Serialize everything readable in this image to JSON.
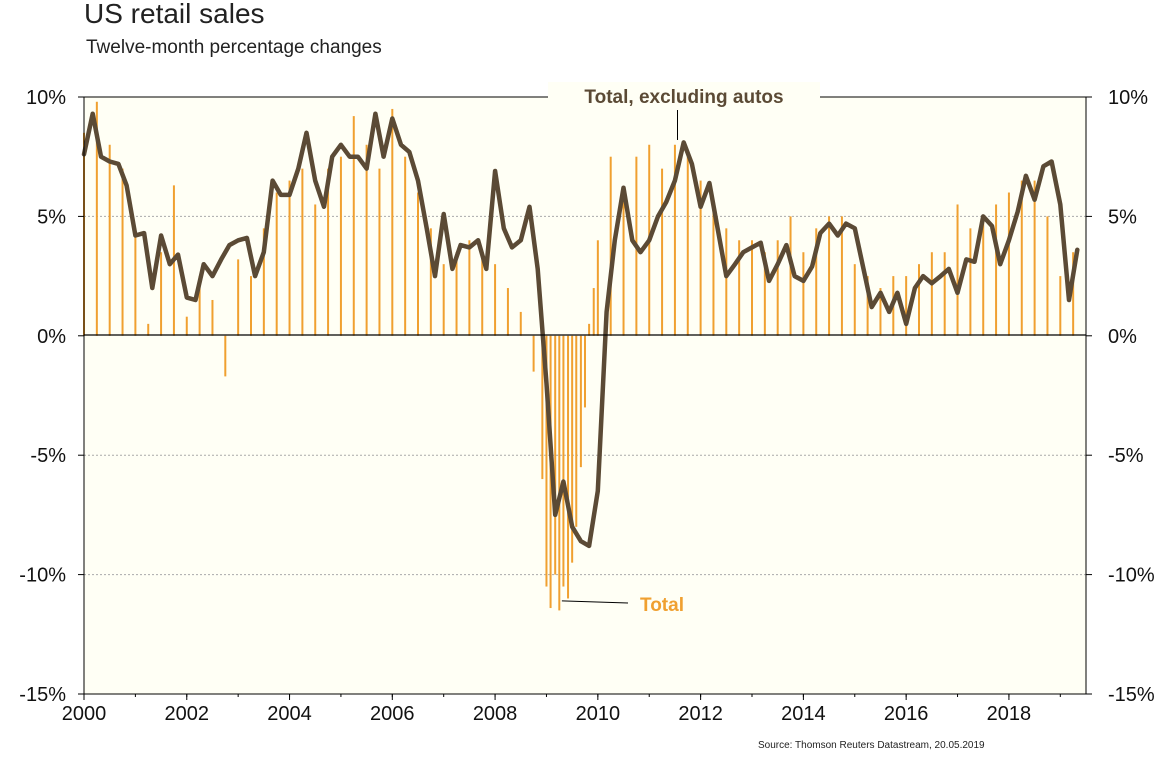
{
  "title": "US retail sales",
  "subtitle": "Twelve-month percentage changes",
  "source": "Source: Thomson Reuters Datastream, 20.05.2019",
  "colors": {
    "total": "#f0a030",
    "ex_autos": "#5b4a35",
    "background": "#fffff5",
    "grid": "#aaaaaa"
  },
  "chart_data": {
    "type": "bar",
    "ylim": [
      -15,
      10
    ],
    "xlim": [
      2000,
      2019.5
    ],
    "y_ticks": [
      {
        "value": 10,
        "label": "10%"
      },
      {
        "value": 5,
        "label": "5%"
      },
      {
        "value": 0,
        "label": "0%"
      },
      {
        "value": -5,
        "label": "-5%"
      },
      {
        "value": -10,
        "label": "-10%"
      },
      {
        "value": -15,
        "label": "-15%"
      }
    ],
    "x_ticks": [
      {
        "value": 2000,
        "label": "2000"
      },
      {
        "value": 2002,
        "label": "2002"
      },
      {
        "value": 2004,
        "label": "2004"
      },
      {
        "value": 2006,
        "label": "2006"
      },
      {
        "value": 2008,
        "label": "2008"
      },
      {
        "value": 2010,
        "label": "2010"
      },
      {
        "value": 2012,
        "label": "2012"
      },
      {
        "value": 2014,
        "label": "2014"
      },
      {
        "value": 2016,
        "label": "2016"
      },
      {
        "value": 2018,
        "label": "2018"
      }
    ],
    "grid": true,
    "annotations": [
      {
        "label": "Total, excluding autos",
        "series": "ex_autos",
        "x": 2011.55,
        "y": 8.2
      },
      {
        "label": "Total",
        "series": "total",
        "x": 2009.3,
        "y": -11.1
      }
    ],
    "series": [
      {
        "key": "total",
        "style": "bar",
        "x": [
          2000.0,
          2000.25,
          2000.5,
          2000.75,
          2001.0,
          2001.25,
          2001.5,
          2001.75,
          2002.0,
          2002.25,
          2002.5,
          2002.75,
          2003.0,
          2003.25,
          2003.5,
          2003.75,
          2004.0,
          2004.25,
          2004.5,
          2004.75,
          2005.0,
          2005.25,
          2005.5,
          2005.75,
          2006.0,
          2006.25,
          2006.5,
          2006.75,
          2007.0,
          2007.25,
          2007.5,
          2007.75,
          2008.0,
          2008.25,
          2008.5,
          2008.75,
          2008.92,
          2009.0,
          2009.08,
          2009.17,
          2009.25,
          2009.33,
          2009.42,
          2009.5,
          2009.58,
          2009.67,
          2009.75,
          2009.83,
          2009.92,
          2010.0,
          2010.25,
          2010.5,
          2010.75,
          2011.0,
          2011.25,
          2011.5,
          2011.75,
          2012.0,
          2012.25,
          2012.5,
          2012.75,
          2013.0,
          2013.25,
          2013.5,
          2013.75,
          2014.0,
          2014.25,
          2014.5,
          2014.75,
          2015.0,
          2015.25,
          2015.5,
          2015.75,
          2016.0,
          2016.25,
          2016.5,
          2016.75,
          2017.0,
          2017.25,
          2017.5,
          2017.75,
          2018.0,
          2018.25,
          2018.5,
          2018.75,
          2019.0,
          2019.25
        ],
        "values": [
          8.5,
          9.8,
          8.0,
          7.0,
          4.5,
          0.5,
          3.5,
          6.3,
          0.8,
          2.5,
          1.5,
          -1.7,
          3.2,
          2.5,
          4.5,
          6.0,
          6.5,
          7.0,
          5.5,
          7.0,
          7.5,
          9.2,
          8.0,
          7.0,
          9.5,
          7.5,
          6.0,
          4.5,
          3.0,
          3.5,
          4.0,
          3.5,
          3.0,
          2.0,
          1.0,
          -1.5,
          -6.0,
          -10.5,
          -11.4,
          -10.0,
          -11.5,
          -10.5,
          -11.0,
          -9.5,
          -8.0,
          -5.5,
          -3.0,
          0.5,
          2.0,
          4.0,
          7.5,
          6.0,
          7.5,
          8.0,
          7.0,
          8.0,
          7.5,
          6.5,
          5.5,
          4.5,
          4.0,
          4.0,
          3.5,
          4.0,
          5.0,
          3.5,
          4.5,
          5.0,
          5.0,
          3.0,
          2.5,
          2.0,
          2.5,
          2.5,
          3.0,
          3.5,
          3.5,
          5.5,
          4.5,
          5.0,
          5.5,
          6.0,
          6.5,
          6.5,
          5.0,
          2.5,
          3.5
        ]
      },
      {
        "key": "ex_autos",
        "style": "line",
        "x": [
          2000.0,
          2000.17,
          2000.33,
          2000.5,
          2000.67,
          2000.83,
          2001.0,
          2001.17,
          2001.33,
          2001.5,
          2001.67,
          2001.83,
          2002.0,
          2002.17,
          2002.33,
          2002.5,
          2002.67,
          2002.83,
          2003.0,
          2003.17,
          2003.33,
          2003.5,
          2003.67,
          2003.83,
          2004.0,
          2004.17,
          2004.33,
          2004.5,
          2004.67,
          2004.83,
          2005.0,
          2005.17,
          2005.33,
          2005.5,
          2005.67,
          2005.83,
          2006.0,
          2006.17,
          2006.33,
          2006.5,
          2006.67,
          2006.83,
          2007.0,
          2007.17,
          2007.33,
          2007.5,
          2007.67,
          2007.83,
          2008.0,
          2008.17,
          2008.33,
          2008.5,
          2008.67,
          2008.83,
          2009.0,
          2009.17,
          2009.33,
          2009.5,
          2009.67,
          2009.83,
          2010.0,
          2010.17,
          2010.33,
          2010.5,
          2010.67,
          2010.83,
          2011.0,
          2011.17,
          2011.33,
          2011.5,
          2011.67,
          2011.83,
          2012.0,
          2012.17,
          2012.33,
          2012.5,
          2012.67,
          2012.83,
          2013.0,
          2013.17,
          2013.33,
          2013.5,
          2013.67,
          2013.83,
          2014.0,
          2014.17,
          2014.33,
          2014.5,
          2014.67,
          2014.83,
          2015.0,
          2015.17,
          2015.33,
          2015.5,
          2015.67,
          2015.83,
          2016.0,
          2016.17,
          2016.33,
          2016.5,
          2016.67,
          2016.83,
          2017.0,
          2017.17,
          2017.33,
          2017.5,
          2017.67,
          2017.83,
          2018.0,
          2018.17,
          2018.33,
          2018.5,
          2018.67,
          2018.83,
          2019.0,
          2019.17,
          2019.33
        ],
        "values": [
          7.6,
          9.3,
          7.5,
          7.3,
          7.2,
          6.3,
          4.2,
          4.3,
          2.0,
          4.2,
          3.0,
          3.4,
          1.6,
          1.5,
          3.0,
          2.5,
          3.2,
          3.8,
          4.0,
          4.1,
          2.5,
          3.5,
          6.5,
          5.9,
          5.9,
          7.0,
          8.5,
          6.5,
          5.4,
          7.5,
          8.0,
          7.5,
          7.5,
          7.0,
          9.3,
          7.5,
          9.1,
          8.0,
          7.7,
          6.5,
          4.5,
          2.5,
          5.1,
          2.8,
          3.8,
          3.7,
          4.0,
          2.8,
          6.9,
          4.5,
          3.7,
          4.0,
          5.4,
          2.8,
          -2.0,
          -7.5,
          -6.1,
          -8.0,
          -8.6,
          -8.8,
          -6.5,
          1.0,
          4.0,
          6.2,
          4.0,
          3.5,
          4.0,
          5.0,
          5.6,
          6.5,
          8.1,
          7.2,
          5.4,
          6.4,
          4.5,
          2.5,
          3.0,
          3.5,
          3.7,
          3.9,
          2.3,
          3.0,
          3.8,
          2.5,
          2.3,
          2.9,
          4.3,
          4.7,
          4.2,
          4.7,
          4.5,
          2.8,
          1.2,
          1.8,
          1.0,
          1.8,
          0.5,
          2.0,
          2.5,
          2.2,
          2.5,
          2.8,
          1.8,
          3.2,
          3.1,
          5.0,
          4.6,
          3.0,
          4.0,
          5.2,
          6.7,
          5.7,
          7.1,
          7.3,
          5.5,
          1.5,
          3.6
        ]
      }
    ]
  }
}
